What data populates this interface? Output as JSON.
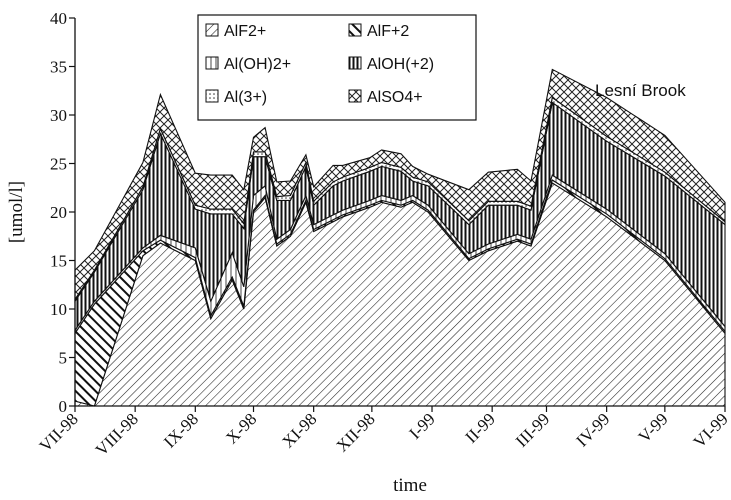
{
  "chart_data": {
    "type": "area",
    "stacked": true,
    "title": "",
    "annotation": "Lesní Brook",
    "xlabel": "time",
    "ylabel": "[umol/l]",
    "ylim": [
      0,
      40
    ],
    "yticks": [
      0,
      5,
      10,
      15,
      20,
      25,
      30,
      35,
      40
    ],
    "xlim": [
      "1998-07-01",
      "1999-06-01"
    ],
    "xticks": [
      {
        "date": "1998-07-01",
        "label": "VII-98"
      },
      {
        "date": "1998-08-01",
        "label": "VIII-98"
      },
      {
        "date": "1998-09-01",
        "label": "IX-98"
      },
      {
        "date": "1998-10-01",
        "label": "X-98"
      },
      {
        "date": "1998-11-01",
        "label": "XI-98"
      },
      {
        "date": "1998-12-01",
        "label": "XII-98"
      },
      {
        "date": "1999-01-01",
        "label": "I-99"
      },
      {
        "date": "1999-02-01",
        "label": "II-99"
      },
      {
        "date": "1999-03-01",
        "label": "III-99"
      },
      {
        "date": "1999-04-01",
        "label": "IV-99"
      },
      {
        "date": "1999-05-01",
        "label": "V-99"
      },
      {
        "date": "1999-06-01",
        "label": "VI-99"
      }
    ],
    "grid": false,
    "legend_position": "top-center",
    "legend_columns": 2,
    "x": [
      "1998-07-01",
      "1998-07-11",
      "1998-08-05",
      "1998-08-14",
      "1998-09-01",
      "1998-09-09",
      "1998-09-20",
      "1998-09-26",
      "1998-10-01",
      "1998-10-07",
      "1998-10-13",
      "1998-10-20",
      "1998-10-28",
      "1998-11-01",
      "1998-11-11",
      "1998-11-16",
      "1998-11-30",
      "1998-12-06",
      "1998-12-16",
      "1998-12-22",
      "1998-12-30",
      "1999-01-20",
      "1999-01-30",
      "1999-02-14",
      "1999-02-21",
      "1999-03-04",
      "1999-04-01",
      "1999-05-01",
      "1999-06-01"
    ],
    "series": [
      {
        "name": "AlF2+",
        "pattern": "hatch-thin-diagonal",
        "values": [
          0.5,
          0.0,
          15.5,
          16.8,
          15.0,
          9.0,
          13.0,
          10.0,
          20.0,
          21.5,
          16.5,
          17.5,
          21.0,
          18.0,
          19.0,
          19.5,
          20.5,
          21.0,
          20.5,
          21.0,
          20.0,
          15.0,
          16.0,
          17.0,
          16.5,
          23.0,
          19.5,
          15.0,
          7.5
        ]
      },
      {
        "name": "AlF+2",
        "pattern": "hatch-thick-diagonal",
        "values": [
          7.0,
          10.5,
          0.5,
          0.3,
          0.3,
          0.3,
          0.3,
          0.3,
          0.2,
          0.2,
          0.2,
          0.2,
          0.2,
          0.2,
          0.2,
          0.2,
          0.2,
          0.2,
          0.2,
          0.2,
          0.2,
          0.2,
          0.2,
          0.2,
          0.2,
          0.3,
          0.3,
          0.2,
          0.2
        ]
      },
      {
        "name": "Al(OH)2+",
        "pattern": "vertical-stripes-light",
        "values": [
          0.3,
          0.3,
          0.3,
          0.5,
          1.0,
          1.5,
          2.5,
          2.0,
          1.5,
          1.0,
          0.5,
          0.5,
          0.5,
          0.5,
          0.5,
          0.5,
          0.5,
          0.5,
          0.5,
          0.5,
          0.5,
          0.5,
          0.5,
          0.5,
          0.5,
          0.5,
          0.5,
          0.5,
          0.5
        ]
      },
      {
        "name": "AlOH(+2)",
        "pattern": "vertical-stripes-dark",
        "values": [
          3.0,
          3.0,
          6.0,
          10.5,
          4.0,
          9.0,
          4.0,
          6.0,
          4.0,
          3.0,
          4.0,
          3.0,
          3.0,
          2.0,
          3.0,
          3.0,
          3.0,
          3.0,
          3.0,
          1.5,
          2.0,
          3.0,
          4.0,
          3.0,
          3.0,
          7.5,
          7.0,
          8.0,
          10.5
        ]
      },
      {
        "name": "Al(3+)",
        "pattern": "dots",
        "values": [
          0.2,
          0.2,
          0.3,
          0.5,
          0.4,
          0.5,
          0.5,
          0.5,
          0.5,
          0.5,
          0.4,
          0.5,
          0.4,
          0.4,
          0.4,
          0.4,
          0.4,
          0.4,
          0.4,
          0.4,
          0.4,
          0.4,
          0.4,
          0.4,
          0.4,
          0.5,
          0.5,
          0.4,
          0.3
        ]
      },
      {
        "name": "AlSO4+",
        "pattern": "crosshatch",
        "values": [
          3.0,
          2.0,
          2.5,
          3.5,
          3.3,
          3.5,
          3.5,
          3.5,
          1.5,
          2.5,
          1.5,
          1.5,
          0.8,
          1.5,
          1.7,
          1.2,
          1.0,
          1.3,
          1.4,
          1.1,
          0.8,
          3.2,
          3.0,
          3.3,
          2.6,
          2.9,
          4.0,
          3.8,
          2.0
        ]
      }
    ]
  }
}
